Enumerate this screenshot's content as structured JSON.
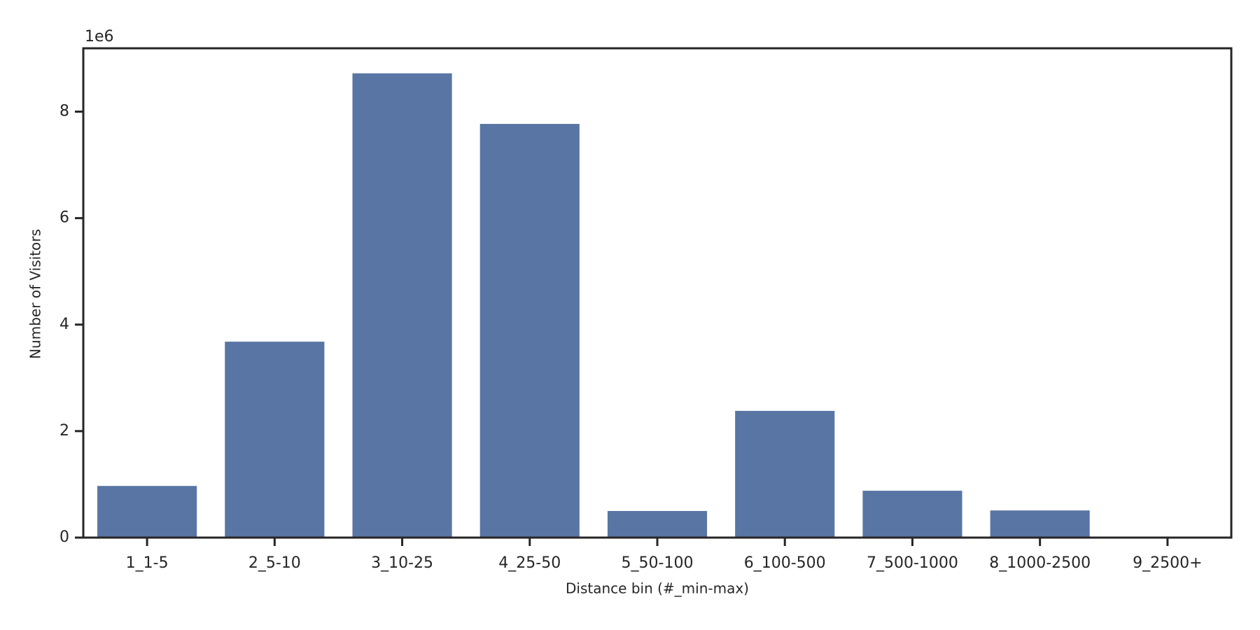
{
  "chart_data": {
    "type": "bar",
    "x_label": "Distance bin (#_min-max)",
    "y_label": "Number of Visitors",
    "y_offset_label": "1e6",
    "categories": [
      "1_1-5",
      "2_5-10",
      "3_10-25",
      "4_25-50",
      "5_50-100",
      "6_100-500",
      "7_500-1000",
      "8_1000-2500",
      "9_2500+"
    ],
    "values": [
      0.97,
      3.68,
      8.72,
      7.77,
      0.5,
      2.38,
      0.88,
      0.51,
      0
    ],
    "color": "#5975a4",
    "ylim": [
      0,
      9.19
    ],
    "yticks": [
      0,
      2,
      4,
      6,
      8
    ],
    "grid": false
  }
}
